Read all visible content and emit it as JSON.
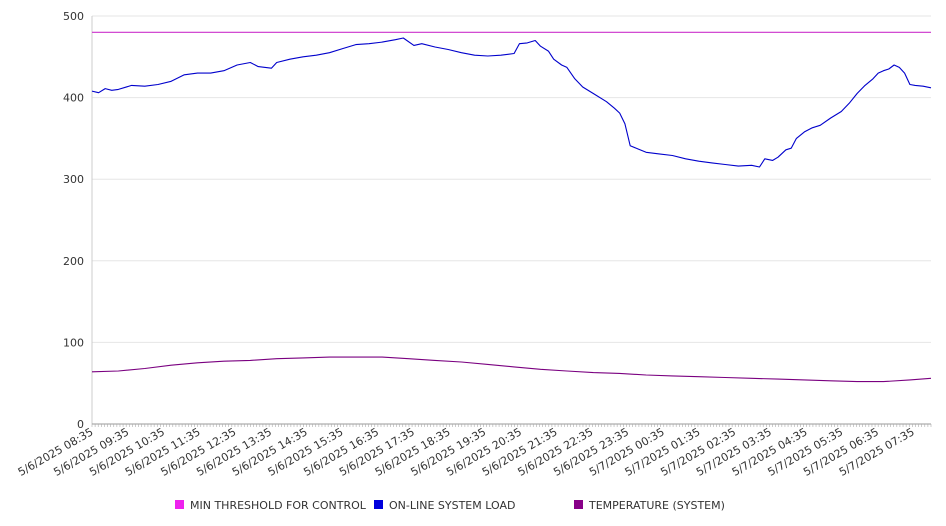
{
  "chart_data": {
    "type": "line",
    "title": "",
    "xlabel": "",
    "ylabel": "",
    "ylim": [
      0,
      500
    ],
    "y_ticks": [
      0,
      100,
      200,
      300,
      400,
      500
    ],
    "grid": {
      "horizontal": true,
      "vertical": false
    },
    "legend_position": "bottom",
    "x_labels": [
      "5/6/2025 08:35",
      "5/6/2025 09:35",
      "5/6/2025 10:35",
      "5/6/2025 11:35",
      "5/6/2025 12:35",
      "5/6/2025 13:35",
      "5/6/2025 14:35",
      "5/6/2025 15:35",
      "5/6/2025 16:35",
      "5/6/2025 17:35",
      "5/6/2025 18:35",
      "5/6/2025 19:35",
      "5/6/2025 20:35",
      "5/6/2025 21:35",
      "5/6/2025 22:35",
      "5/6/2025 23:35",
      "5/7/2025 00:35",
      "5/7/2025 01:35",
      "5/7/2025 02:35",
      "5/7/2025 03:35",
      "5/7/2025 04:35",
      "5/7/2025 05:35",
      "5/7/2025 06:35",
      "5/7/2025 07:35"
    ],
    "x_range_hours": [
      0,
      24
    ],
    "series": [
      {
        "name": "MIN THRESHOLD FOR CONTROL",
        "color": "#cc33cc",
        "points": [
          [
            0,
            480
          ],
          [
            24,
            480
          ]
        ]
      },
      {
        "name": "ON-LINE SYSTEM LOAD",
        "color": "#0000cc",
        "points": [
          [
            0,
            408
          ],
          [
            0.25,
            406
          ],
          [
            0.5,
            411
          ],
          [
            0.75,
            409
          ],
          [
            1,
            410
          ],
          [
            1.5,
            415
          ],
          [
            2,
            414
          ],
          [
            2.5,
            416
          ],
          [
            3,
            420
          ],
          [
            3.5,
            428
          ],
          [
            4,
            430
          ],
          [
            4.5,
            430
          ],
          [
            5,
            433
          ],
          [
            5.5,
            440
          ],
          [
            6,
            443
          ],
          [
            6.3,
            438
          ],
          [
            6.8,
            436
          ],
          [
            7,
            443
          ],
          [
            7.5,
            447
          ],
          [
            8,
            450
          ],
          [
            8.5,
            452
          ],
          [
            9,
            455
          ],
          [
            9.5,
            460
          ],
          [
            10,
            465
          ],
          [
            10.5,
            466
          ],
          [
            11,
            468
          ],
          [
            11.5,
            471
          ],
          [
            11.8,
            473
          ],
          [
            12.2,
            464
          ],
          [
            12.5,
            466
          ],
          [
            13,
            462
          ],
          [
            13.5,
            459
          ],
          [
            14,
            455
          ],
          [
            14.5,
            452
          ],
          [
            15,
            451
          ],
          [
            15.5,
            452
          ],
          [
            16,
            454
          ],
          [
            16.2,
            466
          ],
          [
            16.5,
            467
          ],
          [
            16.8,
            470
          ],
          [
            17,
            463
          ],
          [
            17.3,
            457
          ],
          [
            17.5,
            447
          ],
          [
            17.8,
            440
          ],
          [
            18,
            437
          ],
          [
            18.3,
            423
          ],
          [
            18.6,
            413
          ],
          [
            19,
            405
          ],
          [
            19.5,
            395
          ],
          [
            19.8,
            387
          ],
          [
            20,
            381
          ],
          [
            20.2,
            368
          ],
          [
            20.4,
            341
          ],
          [
            20.7,
            337
          ],
          [
            21,
            333
          ],
          [
            21.5,
            331
          ],
          [
            22,
            329
          ],
          [
            22.5,
            325
          ],
          [
            23,
            322
          ],
          [
            23.5,
            320
          ],
          [
            24,
            318
          ],
          [
            24.5,
            316
          ],
          [
            25,
            317
          ],
          [
            25.3,
            315
          ],
          [
            25.5,
            325
          ],
          [
            25.8,
            323
          ],
          [
            26,
            327
          ],
          [
            26.3,
            336
          ],
          [
            26.5,
            338
          ],
          [
            26.7,
            350
          ],
          [
            27,
            358
          ],
          [
            27.3,
            363
          ],
          [
            27.6,
            366
          ],
          [
            28,
            375
          ],
          [
            28.4,
            383
          ],
          [
            28.7,
            393
          ],
          [
            29,
            405
          ],
          [
            29.3,
            415
          ],
          [
            29.6,
            423
          ],
          [
            29.8,
            430
          ],
          [
            30,
            433
          ],
          [
            30.2,
            435
          ],
          [
            30.4,
            440
          ],
          [
            30.6,
            437
          ],
          [
            30.8,
            430
          ],
          [
            31,
            416
          ],
          [
            31.2,
            415
          ],
          [
            31.5,
            414
          ],
          [
            31.8,
            412
          ]
        ]
      },
      {
        "name": "TEMPERATURE (SYSTEM)",
        "color": "#7a0080",
        "points": [
          [
            0,
            64
          ],
          [
            1,
            65
          ],
          [
            2,
            68
          ],
          [
            3,
            72
          ],
          [
            4,
            75
          ],
          [
            5,
            77
          ],
          [
            6,
            78
          ],
          [
            7,
            80
          ],
          [
            8,
            81
          ],
          [
            9,
            82
          ],
          [
            10,
            82
          ],
          [
            11,
            82
          ],
          [
            12,
            80
          ],
          [
            13,
            78
          ],
          [
            14,
            76
          ],
          [
            15,
            73
          ],
          [
            16,
            70
          ],
          [
            17,
            67
          ],
          [
            18,
            65
          ],
          [
            19,
            63
          ],
          [
            20,
            62
          ],
          [
            21,
            60
          ],
          [
            22,
            59
          ],
          [
            23,
            58
          ],
          [
            24,
            57
          ],
          [
            25,
            56
          ],
          [
            26,
            55
          ],
          [
            27,
            54
          ],
          [
            28,
            53
          ],
          [
            29,
            52
          ],
          [
            30,
            52
          ],
          [
            31,
            54
          ],
          [
            31.8,
            56
          ]
        ]
      }
    ]
  },
  "legend": {
    "items": [
      {
        "label": "MIN THRESHOLD FOR CONTROL",
        "color": "#ee22ee"
      },
      {
        "label": "ON-LINE SYSTEM LOAD",
        "color": "#0000dd"
      },
      {
        "label": "TEMPERATURE (SYSTEM)",
        "color": "#880088"
      }
    ]
  }
}
